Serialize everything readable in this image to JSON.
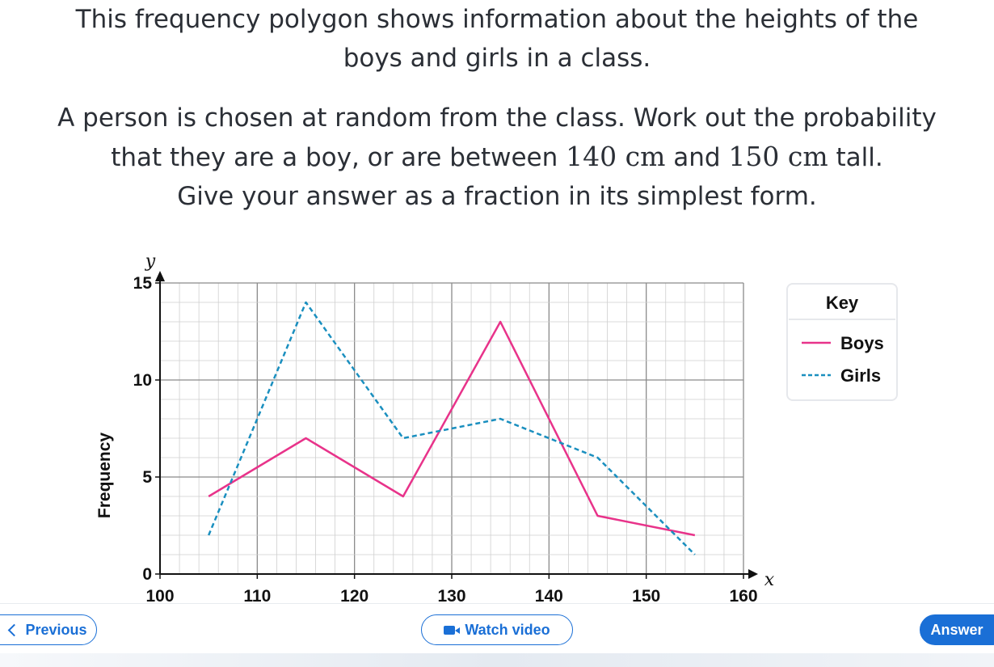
{
  "question": {
    "line1": "This frequency polygon shows information about the heights of the",
    "line2": "boys and girls in a class.",
    "line3": "A person is chosen at random from the class. Work out the probability",
    "line4_pre": "that they are a boy, or are between ",
    "line4_v1": "140 cm",
    "line4_mid": " and ",
    "line4_v2": "150 cm",
    "line4_post": " tall.",
    "line5": "Give your answer as a fraction in its simplest form."
  },
  "chart_data": {
    "type": "line",
    "xlabel": "x",
    "ylabel": "Frequency",
    "y_var": "y",
    "xlim": [
      100,
      160
    ],
    "ylim": [
      0,
      15
    ],
    "x_ticks": [
      "100",
      "110",
      "120",
      "130",
      "140",
      "150",
      "160"
    ],
    "y_ticks": [
      "0",
      "5",
      "10",
      "15"
    ],
    "grid": true,
    "legend_title": "Key",
    "legend_position": "right",
    "x": [
      105,
      115,
      125,
      135,
      145,
      155
    ],
    "series": [
      {
        "name": "Boys",
        "values": [
          4,
          7,
          4,
          13,
          3,
          2
        ],
        "color": "#e8338a",
        "style": "solid"
      },
      {
        "name": "Girls",
        "values": [
          2,
          14,
          7,
          8,
          6,
          1
        ],
        "color": "#1a8fbf",
        "style": "dashed"
      }
    ]
  },
  "buttons": {
    "previous": "Previous",
    "watch_video": "Watch video",
    "answer": "Answer"
  },
  "colors": {
    "accent": "#1a6fd6"
  },
  "icons": {
    "previous": "chevron-left-icon",
    "video": "video-camera-icon"
  }
}
